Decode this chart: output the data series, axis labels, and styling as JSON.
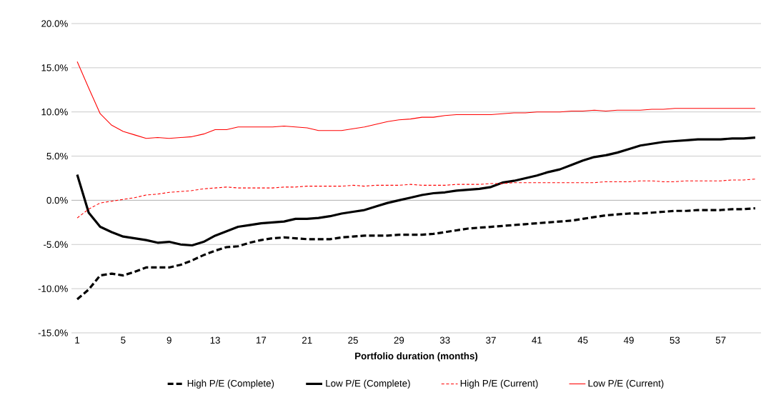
{
  "chart_data": {
    "type": "line",
    "xlabel": "Portfolio duration (months)",
    "categories": [
      "1",
      null,
      null,
      null,
      "5",
      null,
      null,
      null,
      "9",
      null,
      null,
      null,
      "13",
      null,
      null,
      null,
      "17",
      null,
      null,
      null,
      "21",
      null,
      null,
      null,
      "25",
      null,
      null,
      null,
      "29",
      null,
      null,
      null,
      "33",
      null,
      null,
      null,
      "37",
      null,
      null,
      null,
      "41",
      null,
      null,
      null,
      "45",
      null,
      null,
      null,
      "49",
      null,
      null,
      null,
      "53",
      null,
      null,
      null,
      "57",
      null,
      null,
      null
    ],
    "ylim": [
      -15,
      20
    ],
    "yticks": [
      {
        "value": -15,
        "label": "-15.0%"
      },
      {
        "value": -10,
        "label": "-10.0%"
      },
      {
        "value": -5,
        "label": "-5.0%"
      },
      {
        "value": 0,
        "label": "0.0%"
      },
      {
        "value": 5,
        "label": "5.0%"
      },
      {
        "value": 10,
        "label": "10.0%"
      },
      {
        "value": 15,
        "label": "15.0%"
      },
      {
        "value": 20,
        "label": "20.0%"
      }
    ],
    "grid": "y",
    "legend": "bottom",
    "marker": "none",
    "series": [
      {
        "name": "High P/E (Complete)",
        "color": "#000000",
        "line_style": "dashed",
        "values": [
          -11.2,
          -10.1,
          -8.5,
          -8.3,
          -8.5,
          -8.1,
          -7.6,
          -7.6,
          -7.6,
          -7.3,
          -6.8,
          -6.2,
          -5.7,
          -5.3,
          -5.2,
          -4.8,
          -4.5,
          -4.3,
          -4.2,
          -4.3,
          -4.4,
          -4.4,
          -4.4,
          -4.2,
          -4.1,
          -4.0,
          -4.0,
          -4.0,
          -3.9,
          -3.9,
          -3.9,
          -3.8,
          -3.6,
          -3.4,
          -3.2,
          -3.1,
          -3.0,
          -2.9,
          -2.8,
          -2.7,
          -2.6,
          -2.5,
          -2.4,
          -2.3,
          -2.1,
          -1.9,
          -1.7,
          -1.6,
          -1.5,
          -1.5,
          -1.4,
          -1.3,
          -1.2,
          -1.2,
          -1.1,
          -1.1,
          -1.1,
          -1.0,
          -1.0,
          -0.9
        ]
      },
      {
        "name": "Low P/E (Complete)",
        "color": "#000000",
        "line_style": "solid",
        "values": [
          2.9,
          -1.4,
          -3.0,
          -3.6,
          -4.1,
          -4.3,
          -4.5,
          -4.8,
          -4.7,
          -5.0,
          -5.1,
          -4.7,
          -4.0,
          -3.5,
          -3.0,
          -2.8,
          -2.6,
          -2.5,
          -2.4,
          -2.1,
          -2.1,
          -2.0,
          -1.8,
          -1.5,
          -1.3,
          -1.1,
          -0.7,
          -0.3,
          0.0,
          0.3,
          0.6,
          0.8,
          0.9,
          1.1,
          1.2,
          1.3,
          1.5,
          2.0,
          2.2,
          2.5,
          2.8,
          3.2,
          3.5,
          4.0,
          4.5,
          4.9,
          5.1,
          5.4,
          5.8,
          6.2,
          6.4,
          6.6,
          6.7,
          6.8,
          6.9,
          6.9,
          6.9,
          7.0,
          7.0,
          7.1
        ]
      },
      {
        "name": "High P/E (Current)",
        "color": "#ff0000",
        "line_style": "dashed",
        "values": [
          -2.0,
          -1.0,
          -0.3,
          -0.1,
          0.1,
          0.3,
          0.6,
          0.7,
          0.9,
          1.0,
          1.1,
          1.3,
          1.4,
          1.5,
          1.4,
          1.4,
          1.4,
          1.4,
          1.5,
          1.5,
          1.6,
          1.6,
          1.6,
          1.6,
          1.7,
          1.6,
          1.7,
          1.7,
          1.7,
          1.8,
          1.7,
          1.7,
          1.7,
          1.8,
          1.8,
          1.8,
          1.9,
          1.9,
          2.0,
          2.0,
          2.0,
          2.0,
          2.0,
          2.0,
          2.0,
          2.0,
          2.1,
          2.1,
          2.1,
          2.2,
          2.2,
          2.1,
          2.1,
          2.2,
          2.2,
          2.2,
          2.2,
          2.3,
          2.3,
          2.4
        ]
      },
      {
        "name": "Low P/E (Current)",
        "color": "#ff0000",
        "line_style": "solid",
        "values": [
          15.7,
          12.7,
          9.8,
          8.5,
          7.8,
          7.4,
          7.0,
          7.1,
          7.0,
          7.1,
          7.2,
          7.5,
          8.0,
          8.0,
          8.3,
          8.3,
          8.3,
          8.3,
          8.4,
          8.3,
          8.2,
          7.9,
          7.9,
          7.9,
          8.1,
          8.3,
          8.6,
          8.9,
          9.1,
          9.2,
          9.4,
          9.4,
          9.6,
          9.7,
          9.7,
          9.7,
          9.7,
          9.8,
          9.9,
          9.9,
          10.0,
          10.0,
          10.0,
          10.1,
          10.1,
          10.2,
          10.1,
          10.2,
          10.2,
          10.2,
          10.3,
          10.3,
          10.4,
          10.4,
          10.4,
          10.4,
          10.4,
          10.4,
          10.4,
          10.4
        ]
      }
    ]
  }
}
